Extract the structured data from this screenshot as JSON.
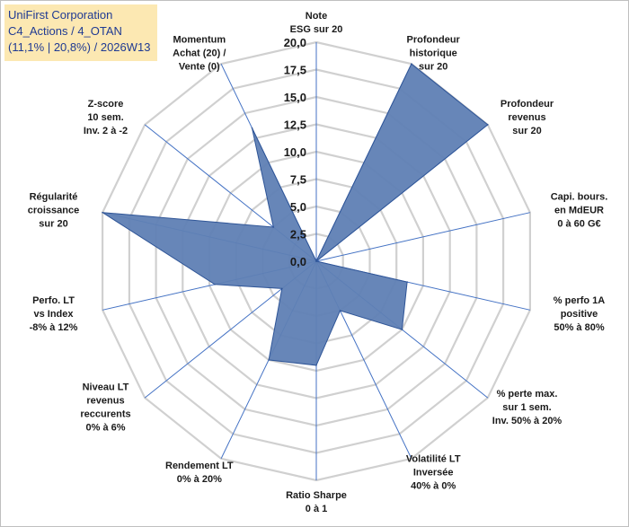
{
  "chart_data": {
    "type": "radar",
    "title_lines": [
      "UniFirst Corporation",
      "C4_Actions / 4_OTAN",
      "(11,1% | 20,8%) / 2026W13"
    ],
    "rmax": 20,
    "ticks": [
      "0,0",
      "2,5",
      "5,0",
      "7,5",
      "10,0",
      "12,5",
      "15,0",
      "17,5",
      "20,0"
    ],
    "tick_values": [
      0,
      2.5,
      5,
      7.5,
      10,
      12.5,
      15,
      17.5,
      20
    ],
    "categories": [
      {
        "label": [
          "Note",
          "ESG sur 20"
        ]
      },
      {
        "label": [
          "Profondeur",
          "historique",
          "sur 20"
        ]
      },
      {
        "label": [
          "Profondeur",
          "revenus",
          "sur 20"
        ]
      },
      {
        "label": [
          "Capi. bours.",
          "en MdEUR",
          "0 à 60 G€"
        ]
      },
      {
        "label": [
          "% perfo 1A",
          "positive",
          "50% à 80%"
        ]
      },
      {
        "label": [
          "% perte max.",
          "sur 1 sem.",
          "Inv. 50% à 20%"
        ]
      },
      {
        "label": [
          "Volatilité LT",
          "Inversée",
          "40% à 0%"
        ]
      },
      {
        "label": [
          "Ratio Sharpe",
          "0 à 1"
        ]
      },
      {
        "label": [
          "Rendement LT",
          "0% à 20%"
        ]
      },
      {
        "label": [
          "Niveau LT",
          "revenus",
          "reccurents",
          "0% à 6%"
        ]
      },
      {
        "label": [
          "Perfo. LT",
          "vs Index",
          "-8% à 12%"
        ]
      },
      {
        "label": [
          "Régularité",
          "croissance",
          "sur 20"
        ]
      },
      {
        "label": [
          "Z-score",
          "10 sem.",
          "Inv. 2 à -2"
        ]
      },
      {
        "label": [
          "Momentum",
          "Achat (20) /",
          "Vente (0)"
        ]
      }
    ],
    "series": [
      {
        "name": "UniFirst Corporation",
        "values": [
          0,
          20,
          20,
          0,
          8.5,
          10,
          5,
          9.5,
          10,
          4,
          9.5,
          20,
          5,
          13.5
        ]
      }
    ],
    "colors": {
      "fill": "#5f7fb4",
      "stroke": "#2f5597",
      "grid": "#d0d0d0",
      "spoke": "#4472c4"
    }
  }
}
